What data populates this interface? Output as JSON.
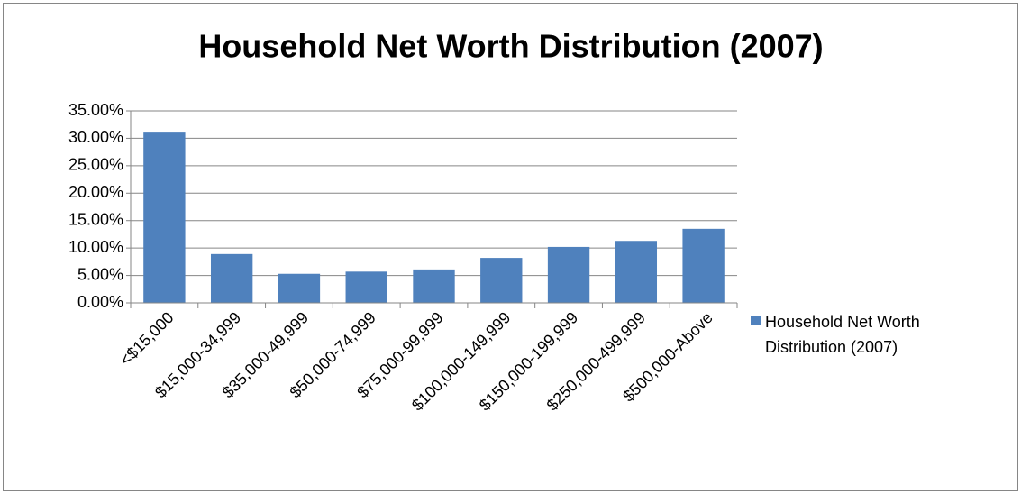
{
  "chart_data": {
    "type": "bar",
    "title": "Household Net Worth Distribution (2007)",
    "categories": [
      "<$15,000",
      "$15,000-34,999",
      "$35,000-49,999",
      "$50,000-74,999",
      "$75,000-99,999",
      "$100,000-149,999",
      "$150,000-199,999",
      "$250,000-499,999",
      "$500,000-Above"
    ],
    "series": [
      {
        "name": "Household Net Worth Distribution (2007)",
        "color": "#4f81bd",
        "values": [
          31.2,
          8.9,
          5.3,
          5.7,
          6.1,
          8.2,
          10.2,
          11.3,
          13.5
        ]
      }
    ],
    "ylim": [
      0,
      35
    ],
    "yticks": [
      {
        "value": 0,
        "label": "0.00%"
      },
      {
        "value": 5,
        "label": "5.00%"
      },
      {
        "value": 10,
        "label": "10.00%"
      },
      {
        "value": 15,
        "label": "15.00%"
      },
      {
        "value": 20,
        "label": "20.00%"
      },
      {
        "value": 25,
        "label": "25.00%"
      },
      {
        "value": 30,
        "label": "30.00%"
      },
      {
        "value": 35,
        "label": "35.00%"
      }
    ],
    "grid": true,
    "legend": "right"
  }
}
